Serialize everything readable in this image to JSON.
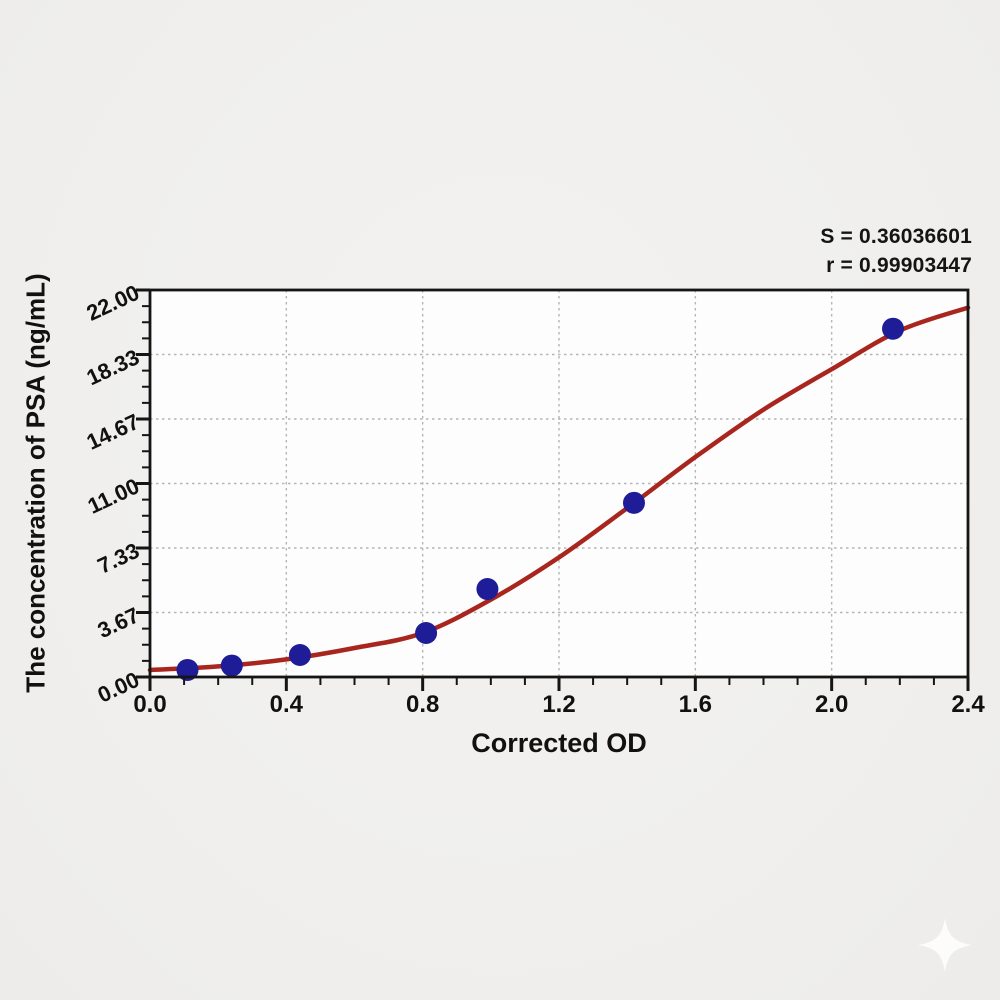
{
  "stats": {
    "s": "S = 0.36036601",
    "r": "r = 0.99903447"
  },
  "watermark": {
    "name": "four-point-sparkle",
    "color": "#ffffff"
  },
  "chart_data": {
    "type": "scatter",
    "title": "",
    "xlabel": "Corrected OD",
    "ylabel": "The concentration of PSA (ng/mL)",
    "xlim": [
      0,
      2.4
    ],
    "ylim": [
      0,
      22
    ],
    "grid": true,
    "grid_style": "dotted",
    "grid_color": "#b5b5b5",
    "plot_bg": "#fdfdfd",
    "frame_color": "#151515",
    "x_tick_values": [
      0,
      0.4,
      0.8,
      1.2,
      1.6,
      2.0,
      2.4
    ],
    "x_tick_labels": [
      "0.0",
      "0.4",
      "0.8",
      "1.2",
      "1.6",
      "2.0",
      "2.4"
    ],
    "x_minor_per_major": 4,
    "y_tick_values": [
      0,
      3.6667,
      7.3333,
      11,
      14.6667,
      18.3333,
      22
    ],
    "y_tick_labels": [
      "0.00",
      "3.67",
      "7.33",
      "11.00",
      "14.67",
      "18.33",
      "22.00"
    ],
    "y_minor_per_major": 4,
    "annotations": [
      "S = 0.36036601",
      "r = 0.99903447"
    ],
    "series": [
      {
        "name": "standard-points",
        "type": "scatter",
        "color": "#1e1c96",
        "marker_radius": 11,
        "points": [
          [
            0.11,
            0.4
          ],
          [
            0.24,
            0.65
          ],
          [
            0.44,
            1.25
          ],
          [
            0.81,
            2.5
          ],
          [
            0.99,
            5.0
          ],
          [
            1.42,
            9.9
          ],
          [
            2.18,
            19.8
          ]
        ]
      },
      {
        "name": "4PL-fit-curve",
        "type": "line",
        "color": "#a8261e",
        "width": 4.5,
        "points": [
          [
            0,
            0.4
          ],
          [
            0.2,
            0.6
          ],
          [
            0.4,
            1.0
          ],
          [
            0.6,
            1.65
          ],
          [
            0.8,
            2.5
          ],
          [
            1.0,
            4.4
          ],
          [
            1.2,
            6.8
          ],
          [
            1.4,
            9.6
          ],
          [
            1.6,
            12.5
          ],
          [
            1.8,
            15.2
          ],
          [
            2.0,
            17.5
          ],
          [
            2.2,
            19.7
          ],
          [
            2.4,
            21.0
          ]
        ]
      }
    ]
  }
}
